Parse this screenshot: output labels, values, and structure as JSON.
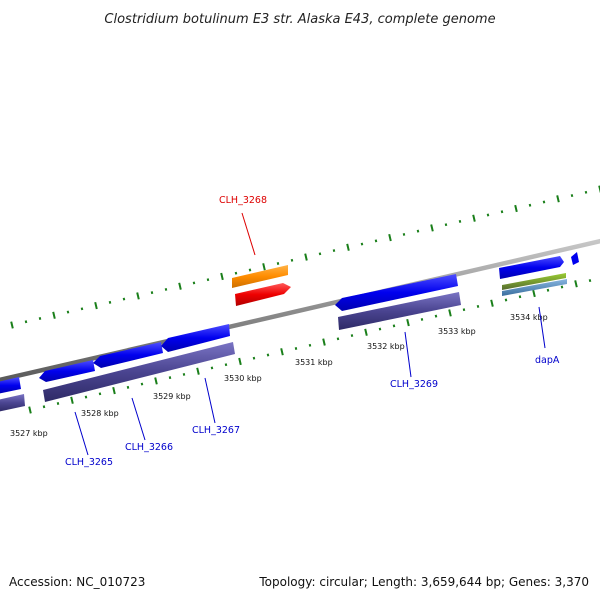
{
  "title": "Clostridium botulinum E3 str. Alaska E43, complete genome",
  "footer": {
    "accession": "Accession: NC_010723",
    "summary": "Topology: circular; Length: 3,659,644 bp; Genes: 3,370"
  },
  "scale_labels": [
    "3527 kbp",
    "3528 kbp",
    "3529 kbp",
    "3530 kbp",
    "3531 kbp",
    "3532 kbp",
    "3533 kbp",
    "3534 kbp"
  ],
  "gene_labels": [
    "CLH_3265",
    "CLH_3266",
    "CLH_3267",
    "CLH_3268",
    "CLH_3269",
    "dapA"
  ],
  "colors": {
    "backbone": "#8c8c8c",
    "cds": "#0000ee",
    "gene_track": "#4a4490",
    "highlight_gene": "#ff0000",
    "highlight_feature": "#ff8c00",
    "misc_green": "#6b8e23",
    "misc_blue": "#4682b4",
    "gc_ticks": "#1a7f1a",
    "label_blue": "#0000cc",
    "label_red": "#dd0000"
  }
}
